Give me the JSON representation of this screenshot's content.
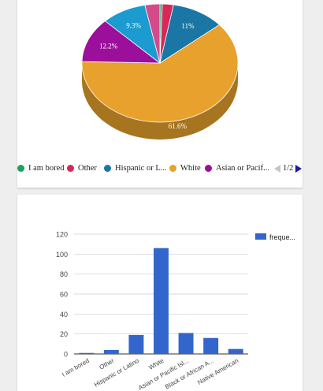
{
  "chart_data": [
    {
      "type": "pie",
      "slices": [
        {
          "label": "I am bored",
          "value": 0.5,
          "color": "#1aa35e",
          "pct_label": ""
        },
        {
          "label": "Other",
          "value": 2.3,
          "color": "#d6285a",
          "pct_label": ""
        },
        {
          "label": "Hispanic or L...",
          "value": 11.0,
          "color": "#1a76a4",
          "pct_label": "11%"
        },
        {
          "label": "White",
          "value": 61.6,
          "color": "#e8a12c",
          "pct_label": "61.6%"
        },
        {
          "label": "Asian or Pacif...",
          "value": 12.2,
          "color": "#9b0f9b",
          "pct_label": "12.2%"
        },
        {
          "label": "",
          "value": 9.3,
          "color": "#1b9bd0",
          "pct_label": "9.3%"
        },
        {
          "label": "",
          "value": 3.1,
          "color": "#d44a8a",
          "pct_label": ""
        }
      ],
      "legend": {
        "position": "bottom",
        "page": "1/2"
      }
    },
    {
      "type": "bar",
      "categories": [
        "I am bored",
        "Other",
        "Hispanic or Latino",
        "White",
        "Asian or Pacific Isl...",
        "Black or African A...",
        "Native American"
      ],
      "series": [
        {
          "name": "freque...",
          "values": [
            1,
            4,
            19,
            106,
            21,
            16,
            5
          ],
          "color": "#3366cc"
        }
      ],
      "ylim": [
        0,
        120
      ],
      "yticks": [
        0,
        20,
        40,
        60,
        80,
        100,
        120
      ],
      "grid": true,
      "legend": {
        "position": "right"
      }
    }
  ]
}
